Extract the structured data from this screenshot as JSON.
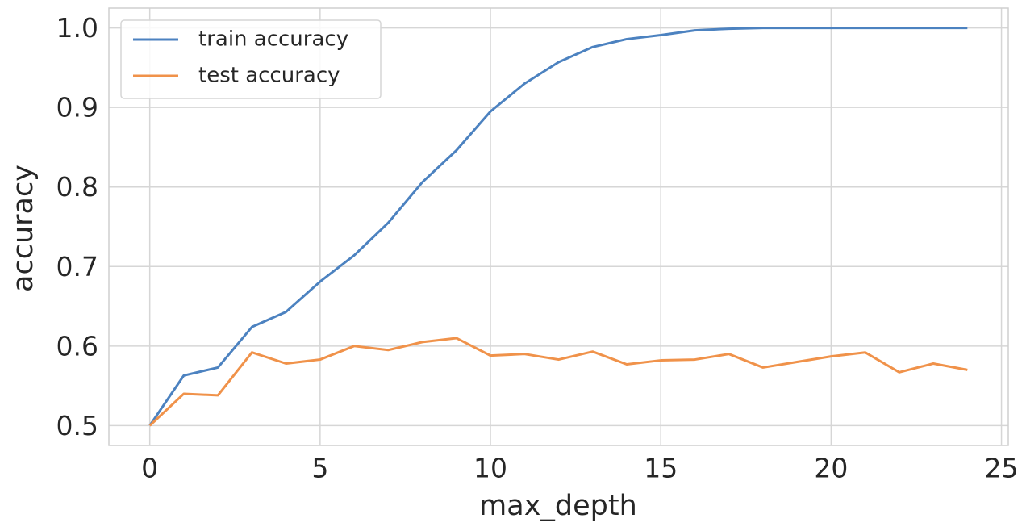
{
  "chart_data": {
    "type": "line",
    "x_label": "max_depth",
    "y_label": "accuracy",
    "x": [
      0,
      1,
      2,
      3,
      4,
      5,
      6,
      7,
      8,
      9,
      10,
      11,
      12,
      13,
      14,
      15,
      16,
      17,
      18,
      19,
      20,
      21,
      22,
      23,
      24
    ],
    "series": [
      {
        "name": "train accuracy",
        "color": "#4c82c0",
        "values": [
          0.5,
          0.563,
          0.573,
          0.624,
          0.643,
          0.681,
          0.714,
          0.755,
          0.806,
          0.846,
          0.895,
          0.93,
          0.957,
          0.976,
          0.986,
          0.991,
          0.997,
          0.999,
          1.0,
          1.0,
          1.0,
          1.0,
          1.0,
          1.0,
          1.0
        ]
      },
      {
        "name": "test accuracy",
        "color": "#f0924a",
        "values": [
          0.5,
          0.54,
          0.538,
          0.592,
          0.578,
          0.583,
          0.6,
          0.595,
          0.605,
          0.61,
          0.588,
          0.59,
          0.583,
          0.593,
          0.577,
          0.582,
          0.583,
          0.59,
          0.573,
          0.58,
          0.587,
          0.592,
          0.567,
          0.578,
          0.57
        ]
      }
    ],
    "xlim": [
      -1.2,
      25.2
    ],
    "xticks": [
      0,
      5,
      10,
      15,
      20,
      25
    ],
    "ylim": [
      0.475,
      1.025
    ],
    "yticks": [
      0.5,
      0.6,
      0.7,
      0.8,
      0.9,
      {
        "value": 1,
        "label": "1.0"
      }
    ],
    "grid": true,
    "legend": "upper left"
  }
}
